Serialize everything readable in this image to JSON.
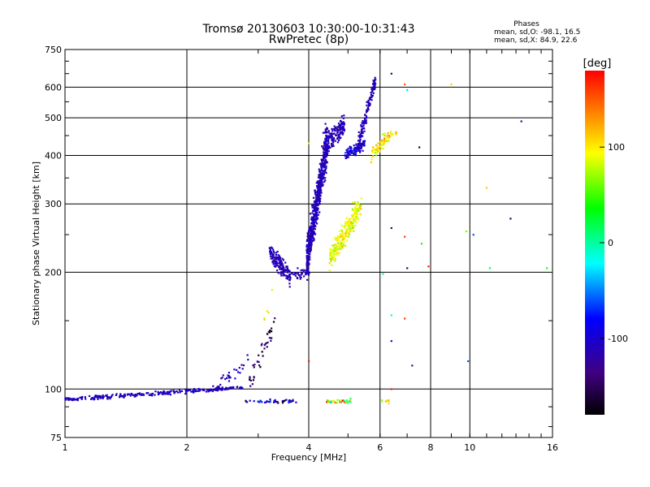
{
  "chart_data": {
    "type": "scatter",
    "title": "Tromsø 20130603 10:30:00-10:31:43",
    "subtitle": "RwPretec (8p)",
    "xlabel": "Frequency [MHz]",
    "ylabel": "Stationary phase Virtual Height [km]",
    "x_scale": "log",
    "y_scale": "log",
    "xlim": [
      1,
      16
    ],
    "ylim": [
      75,
      750
    ],
    "x_ticks": [
      1,
      2,
      4,
      6,
      8,
      10,
      16
    ],
    "x_tick_labels": [
      "1",
      "2",
      "4",
      "6",
      "8",
      "10",
      "16"
    ],
    "y_ticks": [
      75,
      100,
      200,
      300,
      400,
      500,
      600,
      750
    ],
    "y_tick_labels": [
      "75",
      "100",
      "200",
      "300",
      "400",
      "500",
      "600",
      "750"
    ],
    "grid": true,
    "stats": {
      "heading": "Phases",
      "line_o": "mean, sd,O: -98.1, 16.5",
      "line_x": "mean, sd,X:  84.9, 22.6"
    },
    "colorbar": {
      "label": "[deg]",
      "range": [
        -180,
        180
      ],
      "ticks": [
        100,
        0,
        -100
      ],
      "tick_labels": [
        "100",
        "0",
        "-100"
      ]
    },
    "trace_segments": [
      {
        "x0": 1.0,
        "x1": 2.75,
        "y0": 94,
        "y1": 101,
        "n": 260,
        "phase": -108,
        "psd": 8,
        "jit": 0.012
      },
      {
        "x0": 2.3,
        "x1": 2.85,
        "y0": 100,
        "y1": 118,
        "n": 26,
        "phase": -112,
        "psd": 10,
        "jit": 0.04
      },
      {
        "x0": 2.85,
        "x1": 3.3,
        "y0": 103,
        "y1": 148,
        "n": 40,
        "phase": -148,
        "psd": 25,
        "jit": 0.07
      },
      {
        "x0": 3.1,
        "x1": 3.25,
        "y0": 150,
        "y1": 175,
        "n": 5,
        "phase": 100,
        "psd": 30,
        "jit": 0.05
      },
      {
        "x0": 3.2,
        "x1": 3.6,
        "y0": 225,
        "y1": 195,
        "n": 150,
        "phase": -112,
        "psd": 8,
        "jit": 0.055
      },
      {
        "x0": 3.6,
        "x1": 4.0,
        "y0": 195,
        "y1": 200,
        "n": 35,
        "phase": -112,
        "psd": 8,
        "jit": 0.03
      },
      {
        "x0": 3.95,
        "x1": 4.45,
        "y0": 215,
        "y1": 440,
        "n": 650,
        "phase": -112,
        "psd": 8,
        "jit": 0.13
      },
      {
        "x0": 4.4,
        "x1": 4.9,
        "y0": 430,
        "y1": 480,
        "n": 140,
        "phase": -112,
        "psd": 9,
        "jit": 0.06
      },
      {
        "x0": 4.9,
        "x1": 5.5,
        "y0": 400,
        "y1": 430,
        "n": 110,
        "phase": -100,
        "psd": 18,
        "jit": 0.03
      },
      {
        "x0": 5.3,
        "x1": 5.85,
        "y0": 430,
        "y1": 630,
        "n": 120,
        "phase": -112,
        "psd": 10,
        "jit": 0.05
      },
      {
        "x0": 4.5,
        "x1": 5.4,
        "y0": 215,
        "y1": 300,
        "n": 240,
        "phase": 92,
        "psd": 14,
        "jit": 0.07
      },
      {
        "x0": 5.7,
        "x1": 6.6,
        "y0": 400,
        "y1": 470,
        "n": 70,
        "phase": 100,
        "psd": 15,
        "jit": 0.04
      },
      {
        "x0": 2.75,
        "x1": 3.75,
        "y0": 93,
        "y1": 93,
        "n": 45,
        "phase": -115,
        "psd": 35,
        "jit": 0.01
      },
      {
        "x0": 4.4,
        "x1": 5.1,
        "y0": 93,
        "y1": 93,
        "n": 40,
        "phase": 60,
        "psd": 60,
        "jit": 0.01
      },
      {
        "x0": 6.0,
        "x1": 6.4,
        "y0": 93,
        "y1": 93,
        "n": 8,
        "phase": 90,
        "psd": 20,
        "jit": 0.01
      }
    ],
    "outliers": [
      {
        "x": 6.4,
        "y": 650,
        "phase": -150
      },
      {
        "x": 6.9,
        "y": 610,
        "phase": 150
      },
      {
        "x": 7.0,
        "y": 590,
        "phase": -30
      },
      {
        "x": 7.5,
        "y": 420,
        "phase": -160
      },
      {
        "x": 9.0,
        "y": 610,
        "phase": 110
      },
      {
        "x": 13.4,
        "y": 490,
        "phase": -110
      },
      {
        "x": 11.0,
        "y": 330,
        "phase": 110
      },
      {
        "x": 6.4,
        "y": 260,
        "phase": -150
      },
      {
        "x": 6.9,
        "y": 247,
        "phase": 160
      },
      {
        "x": 7.6,
        "y": 237,
        "phase": 40
      },
      {
        "x": 9.8,
        "y": 255,
        "phase": 60
      },
      {
        "x": 10.2,
        "y": 250,
        "phase": -60
      },
      {
        "x": 12.6,
        "y": 275,
        "phase": -150
      },
      {
        "x": 7.0,
        "y": 205,
        "phase": -150
      },
      {
        "x": 7.9,
        "y": 207,
        "phase": 170
      },
      {
        "x": 11.2,
        "y": 205,
        "phase": 20
      },
      {
        "x": 15.5,
        "y": 205,
        "phase": 40
      },
      {
        "x": 6.1,
        "y": 198,
        "phase": 0
      },
      {
        "x": 6.4,
        "y": 155,
        "phase": -10
      },
      {
        "x": 6.9,
        "y": 152,
        "phase": 160
      },
      {
        "x": 6.4,
        "y": 133,
        "phase": -110
      },
      {
        "x": 7.2,
        "y": 115,
        "phase": -140
      },
      {
        "x": 9.9,
        "y": 118,
        "phase": -60
      },
      {
        "x": 4.0,
        "y": 118,
        "phase": 170
      },
      {
        "x": 6.4,
        "y": 100,
        "phase": 170
      },
      {
        "x": 4.0,
        "y": 430,
        "phase": 100
      }
    ]
  }
}
